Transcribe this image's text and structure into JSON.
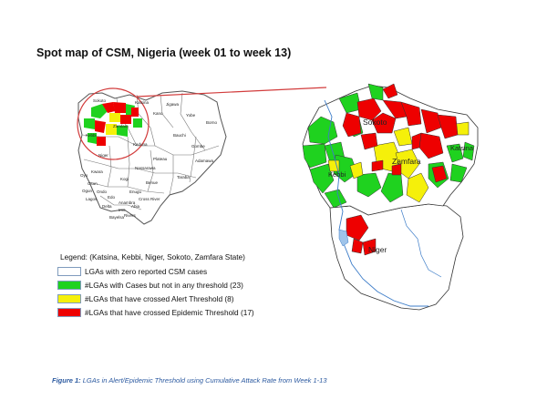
{
  "title": "Spot map of CSM, Nigeria (week 01 to week 13)",
  "inset_map": {
    "state_labels": [
      "Sokoto",
      "Katsina",
      "Kano",
      "Jigawa",
      "Yobe",
      "Borno",
      "Kebbi",
      "Zamfara",
      "Kaduna",
      "Bauchi",
      "Gombe",
      "Niger",
      "Plateau",
      "Adamawa",
      "Kwara",
      "Nassarawa",
      "Taraba",
      "Oyo",
      "Osun",
      "Kogi",
      "Benue",
      "Ogun",
      "Ondo",
      "Edo",
      "Enugu",
      "Lagos",
      "Anambra",
      "Delta",
      "Imo",
      "Abia",
      "Cross River",
      "Rivers",
      "Bayelsa"
    ]
  },
  "zoom_map": {
    "state_labels": [
      "Sokoto",
      "Katsina",
      "Zamfara",
      "Kebbi",
      "Niger"
    ]
  },
  "legend": {
    "heading": "Legend: (Katsina, Kebbi, Niger, Sokoto, Zamfara State)",
    "items": [
      {
        "label": "LGAs with zero reported CSM cases",
        "color": "#ffffff"
      },
      {
        "label": "#LGAs with Cases but not in any threshold (23)",
        "color": "#1fd21f"
      },
      {
        "label": "#LGAs that have crossed Alert Threshold (8)",
        "color": "#f5f00a"
      },
      {
        "label": "#LGAs that have crossed Epidemic Threshold (17)",
        "color": "#ee0000"
      }
    ]
  },
  "caption": {
    "prefix": "Figure 1:",
    "text": " LGAs in Alert/Epidemic Threshold using Cumulative Attack Rate from Week 1-13"
  },
  "colors": {
    "green": "#1fd21f",
    "yellow": "#f5f00a",
    "red": "#ee0000",
    "connector": "#d23c3c",
    "river": "#3c7cc8"
  }
}
